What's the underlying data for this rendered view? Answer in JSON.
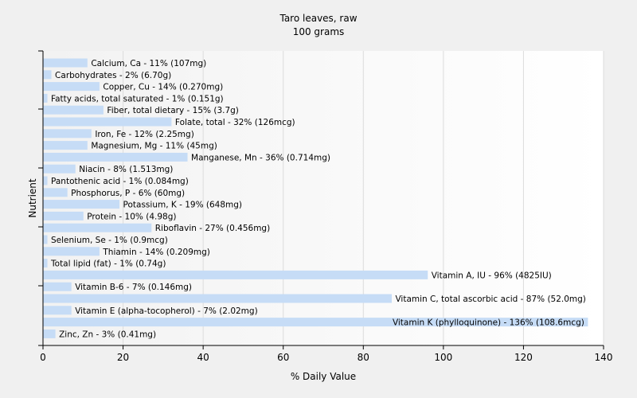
{
  "chart_data": {
    "type": "bar",
    "orientation": "horizontal",
    "title": "Taro leaves, raw",
    "subtitle": "100 grams",
    "xlabel": "% Daily Value",
    "ylabel": "Nutrient",
    "xlim": [
      0,
      140
    ],
    "xticks": [
      0,
      20,
      40,
      60,
      80,
      100,
      120,
      140
    ],
    "grid": "vertical",
    "bar_color": "#c6dcf6",
    "categories": [
      "Calcium, Ca",
      "Carbohydrates",
      "Copper, Cu",
      "Fatty acids, total saturated",
      "Fiber, total dietary",
      "Folate, total",
      "Iron, Fe",
      "Magnesium, Mg",
      "Manganese, Mn",
      "Niacin",
      "Pantothenic acid",
      "Phosphorus, P",
      "Potassium, K",
      "Protein",
      "Riboflavin",
      "Selenium, Se",
      "Thiamin",
      "Total lipid (fat)",
      "Vitamin A, IU",
      "Vitamin B-6",
      "Vitamin C, total ascorbic acid",
      "Vitamin E (alpha-tocopherol)",
      "Vitamin K (phylloquinone)",
      "Zinc, Zn"
    ],
    "values": [
      11,
      2,
      14,
      1,
      15,
      32,
      12,
      11,
      36,
      8,
      1,
      6,
      19,
      10,
      27,
      1,
      14,
      1,
      96,
      7,
      87,
      7,
      136,
      3
    ],
    "labels": [
      "Calcium, Ca - 11% (107mg)",
      "Carbohydrates - 2% (6.70g)",
      "Copper, Cu - 14% (0.270mg)",
      "Fatty acids, total saturated - 1% (0.151g)",
      "Fiber, total dietary - 15% (3.7g)",
      "Folate, total - 32% (126mcg)",
      "Iron, Fe - 12% (2.25mg)",
      "Magnesium, Mg - 11% (45mg)",
      "Manganese, Mn - 36% (0.714mg)",
      "Niacin - 8% (1.513mg)",
      "Pantothenic acid - 1% (0.084mg)",
      "Phosphorus, P - 6% (60mg)",
      "Potassium, K - 19% (648mg)",
      "Protein - 10% (4.98g)",
      "Riboflavin - 27% (0.456mg)",
      "Selenium, Se - 1% (0.9mcg)",
      "Thiamin - 14% (0.209mg)",
      "Total lipid (fat) - 1% (0.74g)",
      "Vitamin A, IU - 96% (4825IU)",
      "Vitamin B-6 - 7% (0.146mg)",
      "Vitamin C, total ascorbic acid - 87% (52.0mg)",
      "Vitamin E (alpha-tocopherol) - 7% (2.02mg)",
      "Vitamin K (phylloquinone) - 136% (108.6mcg)",
      "Zinc, Zn - 3% (0.41mg)"
    ]
  }
}
